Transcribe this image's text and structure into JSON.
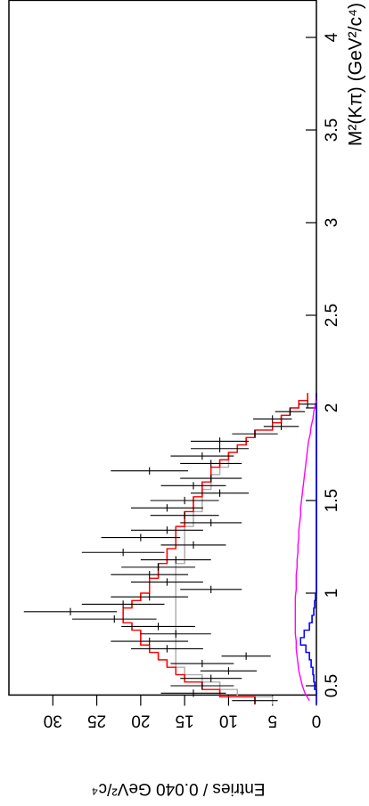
{
  "chart_data": {
    "type": "histogram",
    "xlabel": "M²(Kπ) (GeV²/c⁴)",
    "ylabel": "Entries / 0.040 GeV²/c⁴",
    "xlim": [
      0.45,
      4.2
    ],
    "ylim": [
      0,
      35
    ],
    "xticks": [
      0.5,
      1,
      1.5,
      2,
      2.5,
      3,
      3.5,
      4
    ],
    "yticks": [
      0,
      5,
      10,
      15,
      20,
      25,
      30
    ],
    "bins": [
      0.4,
      0.44,
      0.48,
      0.52,
      0.56,
      0.6,
      0.64,
      0.68,
      0.72,
      0.76,
      0.8,
      0.84,
      0.88,
      0.92,
      0.96,
      1.0,
      1.04,
      1.08,
      1.12,
      1.16,
      1.2,
      1.24,
      1.28,
      1.32,
      1.36,
      1.4,
      1.44,
      1.48,
      1.52,
      1.56,
      1.6,
      1.64,
      1.68,
      1.72,
      1.76,
      1.8,
      1.84,
      1.88,
      1.92,
      1.96,
      2.0,
      2.04,
      2.08
    ],
    "series": [
      {
        "style": "step",
        "color": "#b0b0b0",
        "values": [
          5,
          9,
          11,
          13,
          15,
          16,
          16,
          16,
          16,
          16,
          16,
          16,
          16,
          16,
          16,
          16,
          16,
          16,
          16,
          15,
          15,
          15,
          15,
          15,
          14,
          14,
          13,
          13,
          13,
          12,
          12,
          11,
          10,
          10,
          9,
          8,
          7,
          5,
          4,
          3,
          2,
          1
        ]
      },
      {
        "style": "step",
        "color": "#0000ff",
        "values": [
          0,
          0,
          0.2,
          0.3,
          0.4,
          0.6,
          0.8,
          1.2,
          1.8,
          1.4,
          0.8,
          0.5,
          0.3,
          0.2,
          0.1,
          0,
          0,
          0,
          0,
          0,
          0,
          0,
          0,
          0,
          0,
          0,
          0,
          0,
          0,
          0,
          0,
          0,
          0,
          0,
          0,
          0,
          0,
          0,
          0,
          0,
          0,
          0
        ]
      },
      {
        "style": "line",
        "color": "#ff00ff",
        "x": [
          0.42,
          0.46,
          0.5,
          0.54,
          0.58,
          0.62,
          0.66,
          0.7,
          0.74,
          0.78,
          0.82,
          0.86,
          0.9,
          0.94,
          0.98,
          1.02,
          1.06,
          1.1,
          1.14,
          1.18,
          1.22,
          1.26,
          1.3,
          1.34,
          1.38,
          1.42,
          1.46,
          1.5,
          1.54,
          1.58,
          1.62,
          1.66,
          1.7,
          1.74,
          1.78,
          1.82,
          1.86,
          1.9,
          1.94,
          1.98,
          2.02,
          2.06
        ],
        "values": [
          0.8,
          1.3,
          1.6,
          1.8,
          2,
          2.1,
          2.2,
          2.3,
          2.3,
          2.4,
          2.4,
          2.4,
          2.4,
          2.4,
          2.4,
          2.3,
          2.3,
          2.3,
          2.2,
          2.2,
          2.1,
          2.1,
          2,
          2,
          1.9,
          1.8,
          1.8,
          1.7,
          1.6,
          1.5,
          1.4,
          1.3,
          1.2,
          1.1,
          1,
          0.9,
          0.7,
          0.6,
          0.4,
          0.3,
          0.1,
          0
        ]
      },
      {
        "style": "step",
        "color": "#ff0000",
        "values": [
          7,
          11,
          13,
          15,
          16,
          17,
          18,
          19,
          20,
          20,
          21,
          22,
          22,
          21,
          20,
          19,
          19,
          18,
          18,
          17,
          17,
          16,
          16,
          16,
          15,
          15,
          14,
          14,
          13,
          13,
          12,
          12,
          11,
          10,
          9,
          8,
          7,
          5,
          4,
          3,
          2,
          1
        ]
      },
      {
        "style": "points",
        "color": "#000000",
        "values": [
          7,
          14,
          13,
          12,
          10,
          13,
          8,
          17,
          19,
          16,
          18,
          23,
          28,
          22,
          19,
          12,
          17,
          19,
          18,
          16,
          22,
          14,
          20,
          17,
          12,
          15,
          17,
          15,
          11,
          14,
          12,
          19,
          12,
          13,
          11,
          11,
          7,
          4,
          5,
          3,
          1,
          0
        ],
        "errors": [
          2.6,
          3.7,
          3.6,
          3.5,
          3.2,
          3.6,
          2.8,
          4.1,
          4.4,
          4,
          4.2,
          4.8,
          5.3,
          4.7,
          4.4,
          3.5,
          4.1,
          4.4,
          4.2,
          4,
          4.7,
          3.7,
          4.5,
          4.1,
          3.5,
          3.9,
          4.1,
          3.9,
          3.3,
          3.7,
          3.5,
          4.4,
          3.5,
          3.6,
          3.3,
          3.3,
          2.6,
          2,
          2.2,
          1.7,
          1,
          0
        ]
      }
    ]
  }
}
